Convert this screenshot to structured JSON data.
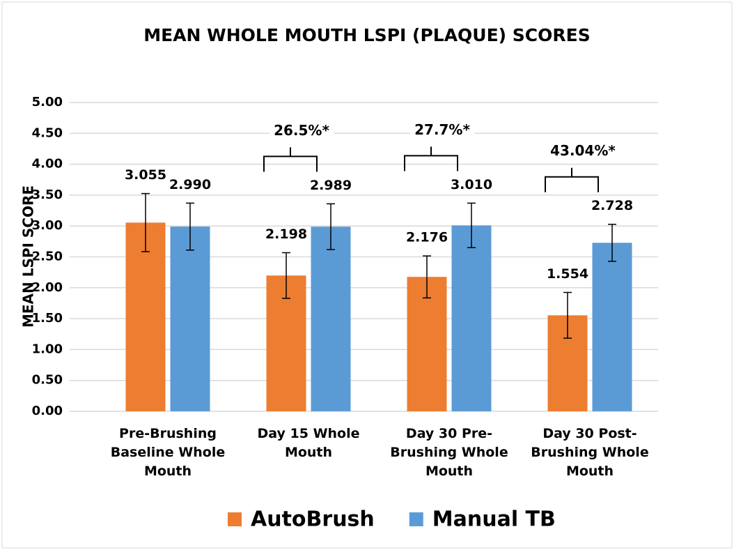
{
  "chart_data": {
    "type": "bar",
    "title": "MEAN WHOLE MOUTH LSPI (PLAQUE) SCORES",
    "y_label": "MEAN LSPI SCORE",
    "categories": [
      "Pre-Brushing\nBaseline Whole\nMouth",
      "Day 15 Whole\nMouth",
      "Day 30 Pre-\nBrushing Whole\nMouth",
      "Day 30 Post-\nBrushing Whole\nMouth"
    ],
    "series": [
      {
        "name": "AutoBrush",
        "color": "#ed7d31",
        "values": [
          3.055,
          2.198,
          2.176,
          1.554
        ],
        "value_labels": [
          "3.055",
          "2.198",
          "2.176",
          "1.554"
        ],
        "errors": [
          0.47,
          0.37,
          0.34,
          0.37
        ]
      },
      {
        "name": "Manual TB",
        "color": "#5b9bd5",
        "values": [
          2.99,
          2.989,
          3.01,
          2.728
        ],
        "value_labels": [
          "2.990",
          "2.989",
          "3.010",
          "2.728"
        ],
        "errors": [
          0.38,
          0.37,
          0.36,
          0.3
        ]
      }
    ],
    "annotations": [
      "26.5%*",
      "27.7%*",
      "43.04%*"
    ],
    "ylim": [
      0,
      5
    ],
    "yticks": [
      {
        "value": 0,
        "label": "0.00"
      },
      {
        "value": 0.5,
        "label": "0.50"
      },
      {
        "value": 1,
        "label": "1.00"
      },
      {
        "value": 1.5,
        "label": "1.50"
      },
      {
        "value": 2,
        "label": "2.00"
      },
      {
        "value": 2.5,
        "label": "2.50"
      },
      {
        "value": 3,
        "label": "3.00"
      },
      {
        "value": 3.5,
        "label": "3.50"
      },
      {
        "value": 4,
        "label": "4.00"
      },
      {
        "value": 4.5,
        "label": "4.50"
      },
      {
        "value": 5,
        "label": "5.00"
      }
    ],
    "grid": true,
    "legend": "bottom"
  }
}
